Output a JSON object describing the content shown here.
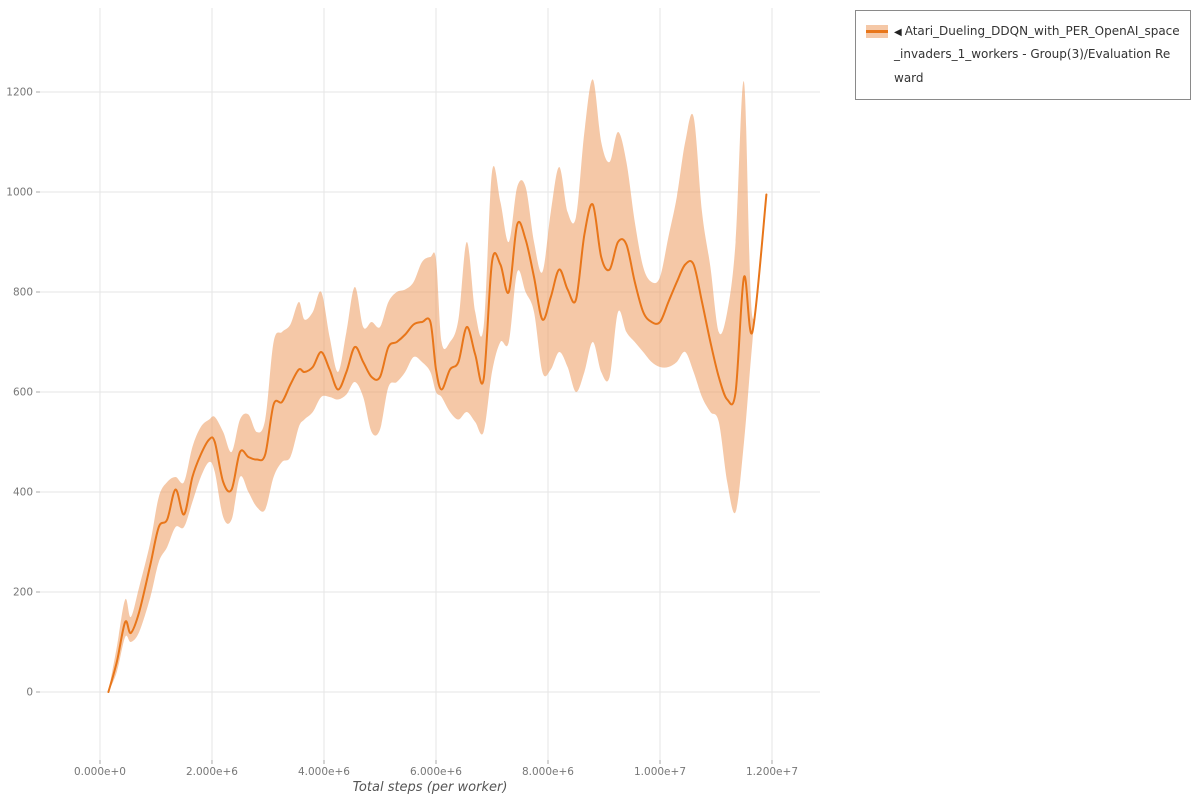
{
  "legend": {
    "collapse_icon": "◀",
    "label": "Atari_Dueling_DDQN_with_PER_OpenAI_space_invaders_1_workers - Group(3)/Evaluation Reward"
  },
  "colors": {
    "line": "#e8761a",
    "band": "#ec9150",
    "band_opacity": 0.5,
    "swatch_band": "#f5c8a7",
    "grid": "#e6e6e6",
    "tick_mark": "#aaaaaa",
    "tick_text": "#777777"
  },
  "chart_data": {
    "type": "line",
    "title": "",
    "xlabel": "Total steps (per worker)",
    "ylabel": "",
    "grid": true,
    "legend_position": "top-right",
    "xlim": [
      -1071000,
      12857000
    ],
    "ylim": [
      -136,
      1368
    ],
    "x_ticks": [
      {
        "value": 0,
        "label": "0.000e+0"
      },
      {
        "value": 2000000,
        "label": "2.000e+6"
      },
      {
        "value": 4000000,
        "label": "4.000e+6"
      },
      {
        "value": 6000000,
        "label": "6.000e+6"
      },
      {
        "value": 8000000,
        "label": "8.000e+6"
      },
      {
        "value": 10000000,
        "label": "1.000e+7"
      },
      {
        "value": 12000000,
        "label": "1.200e+7"
      }
    ],
    "y_ticks": [
      {
        "value": 0,
        "label": "0"
      },
      {
        "value": 200,
        "label": "200"
      },
      {
        "value": 400,
        "label": "400"
      },
      {
        "value": 600,
        "label": "600"
      },
      {
        "value": 800,
        "label": "800"
      },
      {
        "value": 1000,
        "label": "1000"
      },
      {
        "value": 1200,
        "label": "1200"
      }
    ],
    "series": [
      {
        "name": "Atari_Dueling_DDQN_with_PER_OpenAI_space_invaders_1_workers - Group(3)/Evaluation Reward",
        "x": [
          150000.0,
          300000.0,
          450000.0,
          550000.0,
          700000.0,
          900000.0,
          1050000.0,
          1200000.0,
          1350000.0,
          1500000.0,
          1650000.0,
          1800000.0,
          1950000.0,
          2050000.0,
          2200000.0,
          2350000.0,
          2500000.0,
          2650000.0,
          2800000.0,
          2950000.0,
          3100000.0,
          3250000.0,
          3400000.0,
          3550000.0,
          3650000.0,
          3800000.0,
          3950000.0,
          4100000.0,
          4250000.0,
          4400000.0,
          4550000.0,
          4700000.0,
          4850000.0,
          5000000.0,
          5150000.0,
          5300000.0,
          5450000.0,
          5600000.0,
          5750000.0,
          5900000.0,
          6000000.0,
          6100000.0,
          6250000.0,
          6400000.0,
          6550000.0,
          6700000.0,
          6850000.0,
          7000000.0,
          7150000.0,
          7300000.0,
          7450000.0,
          7600000.0,
          7750000.0,
          7900000.0,
          8050000.0,
          8200000.0,
          8350000.0,
          8500000.0,
          8650000.0,
          8800000.0,
          8950000.0,
          9100000.0,
          9250000.0,
          9400000.0,
          9550000.0,
          9700000.0,
          9850000.0,
          10000000.0,
          10150000.0,
          10300000.0,
          10450000.0,
          10600000.0,
          10750000.0,
          10900000.0,
          11050000.0,
          11200000.0,
          11350000.0,
          11500000.0,
          11650000.0,
          11900000.0
        ],
        "y": [
          0,
          60,
          140,
          118,
          160,
          255,
          330,
          345,
          405,
          355,
          430,
          475,
          505,
          500,
          420,
          405,
          480,
          470,
          465,
          475,
          575,
          580,
          615,
          645,
          640,
          650,
          680,
          645,
          605,
          640,
          690,
          660,
          630,
          630,
          690,
          700,
          715,
          735,
          740,
          740,
          645,
          605,
          645,
          660,
          730,
          675,
          625,
          860,
          855,
          800,
          935,
          905,
          830,
          745,
          790,
          845,
          805,
          785,
          915,
          975,
          870,
          845,
          900,
          895,
          820,
          760,
          740,
          740,
          780,
          820,
          855,
          855,
          780,
          700,
          630,
          585,
          600,
          830,
          720,
          995
        ],
        "y_lower": [
          0,
          40,
          110,
          100,
          120,
          190,
          260,
          290,
          330,
          330,
          380,
          430,
          460,
          440,
          350,
          345,
          430,
          400,
          370,
          365,
          430,
          460,
          470,
          530,
          545,
          560,
          590,
          590,
          585,
          595,
          620,
          590,
          520,
          525,
          610,
          620,
          640,
          670,
          660,
          640,
          600,
          590,
          560,
          545,
          560,
          540,
          520,
          640,
          700,
          700,
          840,
          800,
          760,
          640,
          645,
          680,
          650,
          600,
          640,
          700,
          640,
          630,
          760,
          720,
          700,
          680,
          660,
          650,
          650,
          660,
          680,
          640,
          590,
          560,
          540,
          420,
          360,
          500,
          700,
          995
        ],
        "y_upper": [
          0,
          90,
          185,
          150,
          210,
          300,
          390,
          420,
          430,
          420,
          490,
          530,
          545,
          550,
          520,
          480,
          545,
          555,
          520,
          545,
          700,
          720,
          735,
          780,
          745,
          760,
          800,
          710,
          640,
          720,
          810,
          730,
          740,
          730,
          780,
          800,
          805,
          820,
          860,
          870,
          865,
          700,
          700,
          745,
          900,
          760,
          730,
          1040,
          980,
          900,
          1010,
          1010,
          900,
          840,
          960,
          1050,
          960,
          950,
          1120,
          1225,
          1100,
          1060,
          1120,
          1060,
          940,
          850,
          820,
          830,
          910,
          990,
          1100,
          1150,
          960,
          850,
          720,
          760,
          900,
          1220,
          750,
          995
        ]
      }
    ]
  }
}
